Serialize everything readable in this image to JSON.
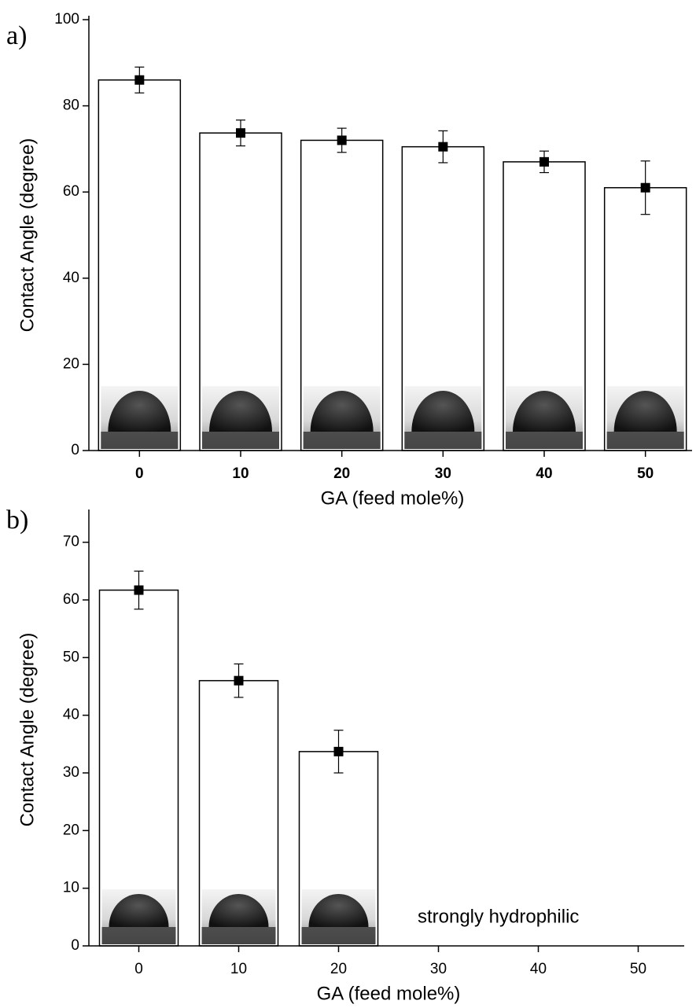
{
  "charts": [
    {
      "type": "bar",
      "panel_label": "a)",
      "ylabel": "Contact Angle (degree)",
      "xlabel": "GA (feed mole%)",
      "categories": [
        "0",
        "10",
        "20",
        "30",
        "40",
        "50"
      ],
      "values": [
        86,
        73.7,
        72,
        70.5,
        67,
        61
      ],
      "errors": [
        3,
        3,
        2.8,
        3.7,
        2.5,
        6.2
      ],
      "color": "#ffffff",
      "xtick_bold": true,
      "ylim": [
        0,
        100
      ],
      "yticks": [
        0,
        20,
        40,
        60,
        80,
        100
      ]
    },
    {
      "type": "bar",
      "panel_label": "b)",
      "ylabel": "Contact Angle (degree)",
      "xlabel": "GA (feed mole%)",
      "categories": [
        "0",
        "10",
        "20",
        "30",
        "40",
        "50"
      ],
      "values": [
        61.7,
        46,
        33.7,
        null,
        null,
        null
      ],
      "errors": [
        3.3,
        2.9,
        3.7,
        null,
        null,
        null
      ],
      "color": "#ffffff",
      "xtick_bold": false,
      "annotation": "strongly hydrophilic",
      "ylim": [
        0,
        75
      ],
      "yticks": [
        0,
        10,
        20,
        30,
        40,
        50,
        60,
        70
      ]
    }
  ]
}
